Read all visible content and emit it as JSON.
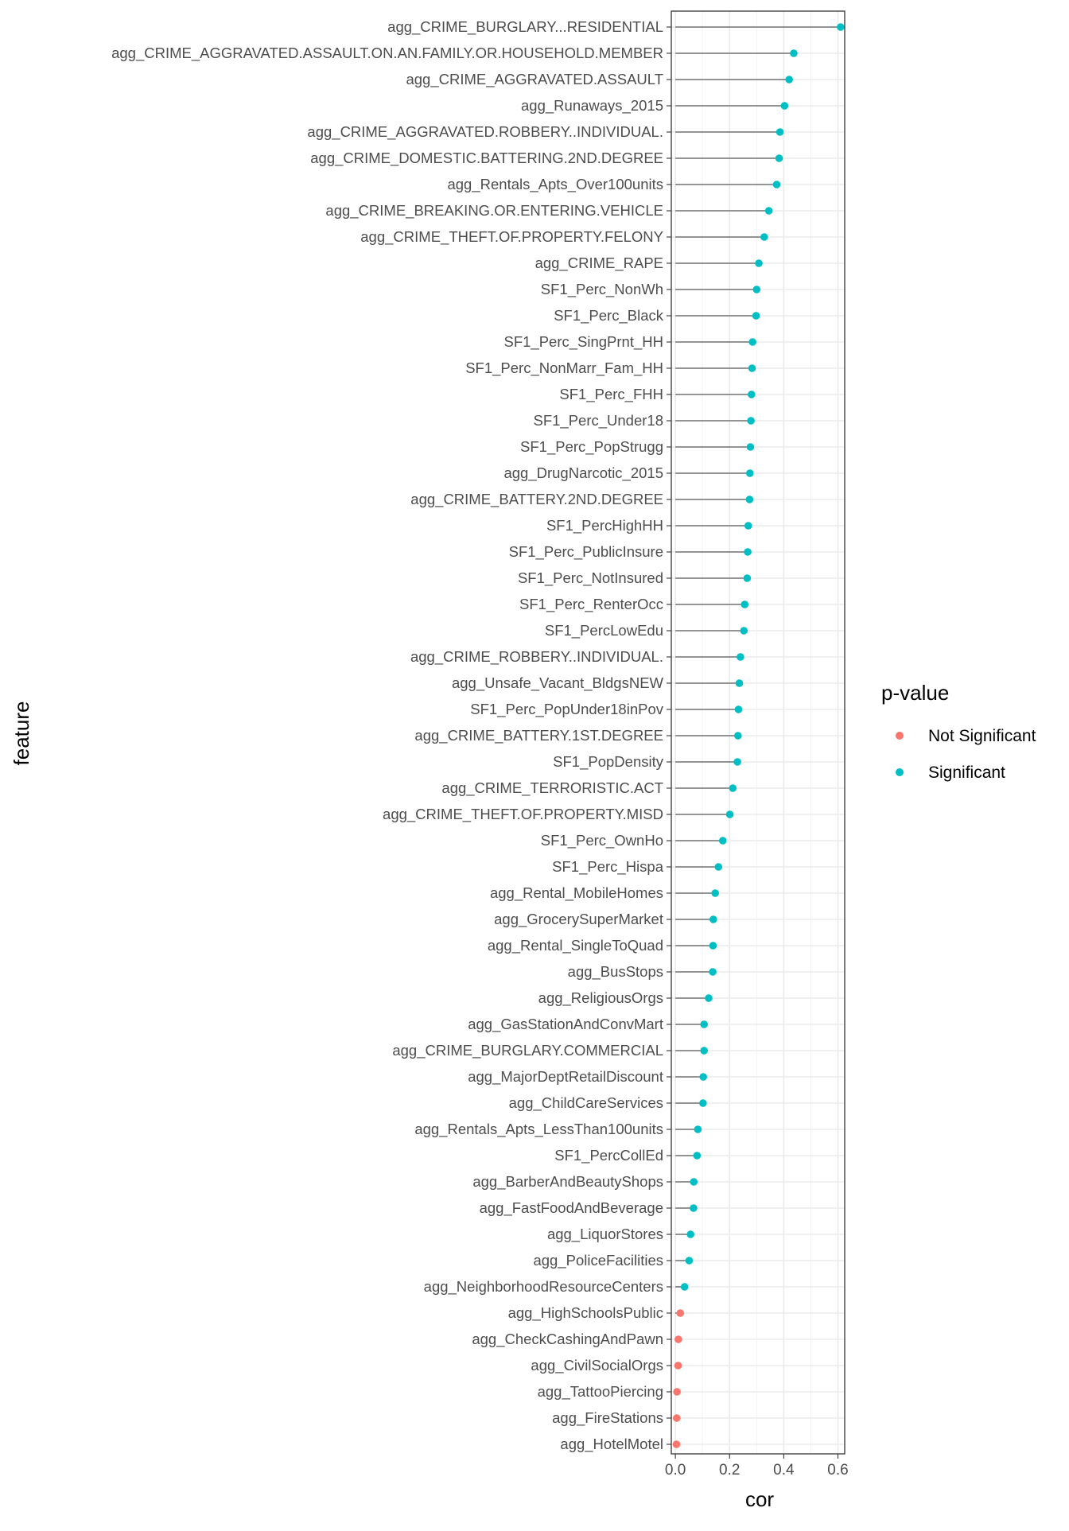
{
  "chart_data": {
    "type": "lollipop",
    "xlabel": "cor",
    "ylabel": "feature",
    "xlim": [
      -0.015,
      0.625
    ],
    "xticks": [
      0.0,
      0.2,
      0.4,
      0.6
    ],
    "xtick_labels": [
      "0.0",
      "0.2",
      "0.4",
      "0.6"
    ],
    "grid": true,
    "legend": {
      "title": "p-value",
      "position": "right",
      "entries": [
        {
          "label": "Not Significant",
          "color": "#F8766D"
        },
        {
          "label": "Significant",
          "color": "#00BFC4"
        }
      ]
    },
    "colors": {
      "Not Significant": "#F8766D",
      "Significant": "#00BFC4",
      "stem": "#333333",
      "grid_major": "#EBEBEB",
      "grid_minor": "#F3F3F3",
      "panel_border": "#333333",
      "axis_text": "#4D4D4D"
    },
    "points": [
      {
        "feature": "agg_CRIME_BURGLARY...RESIDENTIAL",
        "cor": 0.61,
        "group": "Significant"
      },
      {
        "feature": "agg_CRIME_AGGRAVATED.ASSAULT.ON.AN.FAMILY.OR.HOUSEHOLD.MEMBER",
        "cor": 0.437,
        "group": "Significant"
      },
      {
        "feature": "agg_CRIME_AGGRAVATED.ASSAULT",
        "cor": 0.42,
        "group": "Significant"
      },
      {
        "feature": "agg_Runaways_2015",
        "cor": 0.403,
        "group": "Significant"
      },
      {
        "feature": "agg_CRIME_AGGRAVATED.ROBBERY..INDIVIDUAL.",
        "cor": 0.386,
        "group": "Significant"
      },
      {
        "feature": "agg_CRIME_DOMESTIC.BATTERING.2ND.DEGREE",
        "cor": 0.383,
        "group": "Significant"
      },
      {
        "feature": "agg_Rentals_Apts_Over100units",
        "cor": 0.374,
        "group": "Significant"
      },
      {
        "feature": "agg_CRIME_BREAKING.OR.ENTERING.VEHICLE",
        "cor": 0.345,
        "group": "Significant"
      },
      {
        "feature": "agg_CRIME_THEFT.OF.PROPERTY.FELONY",
        "cor": 0.328,
        "group": "Significant"
      },
      {
        "feature": "agg_CRIME_RAPE",
        "cor": 0.308,
        "group": "Significant"
      },
      {
        "feature": "SF1_Perc_NonWh",
        "cor": 0.3,
        "group": "Significant"
      },
      {
        "feature": "SF1_Perc_Black",
        "cor": 0.298,
        "group": "Significant"
      },
      {
        "feature": "SF1_Perc_SingPrnt_HH",
        "cor": 0.285,
        "group": "Significant"
      },
      {
        "feature": "SF1_Perc_NonMarr_Fam_HH",
        "cor": 0.283,
        "group": "Significant"
      },
      {
        "feature": "SF1_Perc_FHH",
        "cor": 0.281,
        "group": "Significant"
      },
      {
        "feature": "SF1_Perc_Under18",
        "cor": 0.279,
        "group": "Significant"
      },
      {
        "feature": "SF1_Perc_PopStrugg",
        "cor": 0.277,
        "group": "Significant"
      },
      {
        "feature": "agg_DrugNarcotic_2015",
        "cor": 0.275,
        "group": "Significant"
      },
      {
        "feature": "agg_CRIME_BATTERY.2ND.DEGREE",
        "cor": 0.274,
        "group": "Significant"
      },
      {
        "feature": "SF1_PercHighHH",
        "cor": 0.269,
        "group": "Significant"
      },
      {
        "feature": "SF1_Perc_PublicInsure",
        "cor": 0.267,
        "group": "Significant"
      },
      {
        "feature": "SF1_Perc_NotInsured",
        "cor": 0.265,
        "group": "Significant"
      },
      {
        "feature": "SF1_Perc_RenterOcc",
        "cor": 0.256,
        "group": "Significant"
      },
      {
        "feature": "SF1_PercLowEdu",
        "cor": 0.253,
        "group": "Significant"
      },
      {
        "feature": "agg_CRIME_ROBBERY..INDIVIDUAL.",
        "cor": 0.24,
        "group": "Significant"
      },
      {
        "feature": "agg_Unsafe_Vacant_BldgsNEW",
        "cor": 0.236,
        "group": "Significant"
      },
      {
        "feature": "SF1_Perc_PopUnder18inPov",
        "cor": 0.233,
        "group": "Significant"
      },
      {
        "feature": "agg_CRIME_BATTERY.1ST.DEGREE",
        "cor": 0.231,
        "group": "Significant"
      },
      {
        "feature": "SF1_PopDensity",
        "cor": 0.229,
        "group": "Significant"
      },
      {
        "feature": "agg_CRIME_TERRORISTIC.ACT",
        "cor": 0.212,
        "group": "Significant"
      },
      {
        "feature": "agg_CRIME_THEFT.OF.PROPERTY.MISD",
        "cor": 0.201,
        "group": "Significant"
      },
      {
        "feature": "SF1_Perc_OwnHo",
        "cor": 0.175,
        "group": "Significant"
      },
      {
        "feature": "SF1_Perc_Hispa",
        "cor": 0.159,
        "group": "Significant"
      },
      {
        "feature": "agg_Rental_MobileHomes",
        "cor": 0.147,
        "group": "Significant"
      },
      {
        "feature": "agg_GrocerySuperMarket",
        "cor": 0.14,
        "group": "Significant"
      },
      {
        "feature": "agg_Rental_SingleToQuad",
        "cor": 0.139,
        "group": "Significant"
      },
      {
        "feature": "agg_BusStops",
        "cor": 0.138,
        "group": "Significant"
      },
      {
        "feature": "agg_ReligiousOrgs",
        "cor": 0.123,
        "group": "Significant"
      },
      {
        "feature": "agg_GasStationAndConvMart",
        "cor": 0.106,
        "group": "Significant"
      },
      {
        "feature": "agg_CRIME_BURGLARY.COMMERCIAL",
        "cor": 0.106,
        "group": "Significant"
      },
      {
        "feature": "agg_MajorDeptRetailDiscount",
        "cor": 0.103,
        "group": "Significant"
      },
      {
        "feature": "agg_ChildCareServices",
        "cor": 0.102,
        "group": "Significant"
      },
      {
        "feature": "agg_Rentals_Apts_LessThan100units",
        "cor": 0.083,
        "group": "Significant"
      },
      {
        "feature": "SF1_PercCollEd",
        "cor": 0.08,
        "group": "Significant"
      },
      {
        "feature": "agg_BarberAndBeautyShops",
        "cor": 0.068,
        "group": "Significant"
      },
      {
        "feature": "agg_FastFoodAndBeverage",
        "cor": 0.067,
        "group": "Significant"
      },
      {
        "feature": "agg_LiquorStores",
        "cor": 0.056,
        "group": "Significant"
      },
      {
        "feature": "agg_PoliceFacilities",
        "cor": 0.051,
        "group": "Significant"
      },
      {
        "feature": "agg_NeighborhoodResourceCenters",
        "cor": 0.034,
        "group": "Significant"
      },
      {
        "feature": "agg_HighSchoolsPublic",
        "cor": 0.018,
        "group": "Not Significant"
      },
      {
        "feature": "agg_CheckCashingAndPawn",
        "cor": 0.011,
        "group": "Not Significant"
      },
      {
        "feature": "agg_CivilSocialOrgs",
        "cor": 0.01,
        "group": "Not Significant"
      },
      {
        "feature": "agg_TattooPiercing",
        "cor": 0.006,
        "group": "Not Significant"
      },
      {
        "feature": "agg_FireStations",
        "cor": 0.005,
        "group": "Not Significant"
      },
      {
        "feature": "agg_HotelMotel",
        "cor": 0.004,
        "group": "Not Significant"
      }
    ]
  }
}
